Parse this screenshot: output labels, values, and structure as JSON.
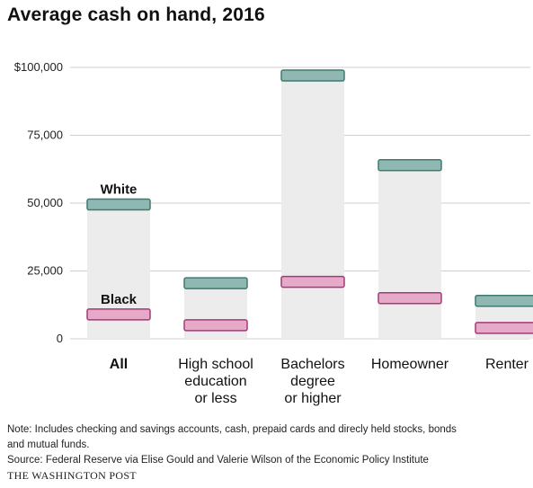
{
  "title": "Average cash on hand, 2016",
  "chart_data": {
    "type": "bar",
    "categories": [
      "All",
      "High school\neducation\nor less",
      "Bachelors\ndegree\nor higher",
      "Homeowner",
      "Renter"
    ],
    "series": [
      {
        "name": "White",
        "values": [
          49500,
          20500,
          97000,
          64000,
          14000
        ],
        "color": "#8fb8b2"
      },
      {
        "name": "Black",
        "values": [
          9000,
          5000,
          21000,
          15000,
          4000
        ],
        "color": "#e7a9c8"
      }
    ],
    "ylim": [
      0,
      100000
    ],
    "yticks": [
      0,
      25000,
      50000,
      75000,
      100000
    ],
    "ytick_labels": [
      "0",
      "25,000",
      "50,000",
      "75,000",
      "$100,000"
    ],
    "grid": true,
    "xlabel": "",
    "ylabel": ""
  },
  "colors": {
    "white_stroke": "#3f7a6f",
    "black_stroke": "#a23b78",
    "range_fill": "#ececec",
    "grid": "#cfcfcf"
  },
  "note": {
    "line1": "Note: Includes checking and savings accounts, cash, prepaid cards and direcly held stocks, bonds",
    "line2": "and mutual funds.",
    "source": "Source: Federal Reserve via Elise Gould and Valerie Wilson of the Economic Policy Institute",
    "brand": "THE WASHINGTON POST"
  }
}
